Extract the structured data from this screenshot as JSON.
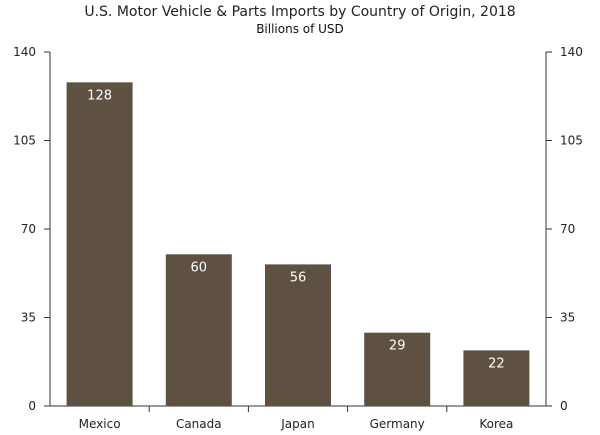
{
  "chart_data": {
    "type": "bar",
    "title": "U.S. Motor Vehicle & Parts Imports by Country of Origin, 2018",
    "subtitle": "Billions of USD",
    "categories": [
      "Mexico",
      "Canada",
      "Japan",
      "Germany",
      "Korea"
    ],
    "values": [
      128,
      60,
      56,
      29,
      22
    ],
    "data_labels": [
      "128",
      "60",
      "56",
      "29",
      "22"
    ],
    "ylim": [
      0,
      140
    ],
    "yticks": [
      0,
      35,
      70,
      105,
      140
    ],
    "ytick_labels": [
      "0",
      "35",
      "70",
      "105",
      "140"
    ],
    "xlabel": "",
    "ylabel": "",
    "grid": false,
    "dual_y_axis": true,
    "bar_color": "#5e5142",
    "label_color": "#ffffff"
  }
}
